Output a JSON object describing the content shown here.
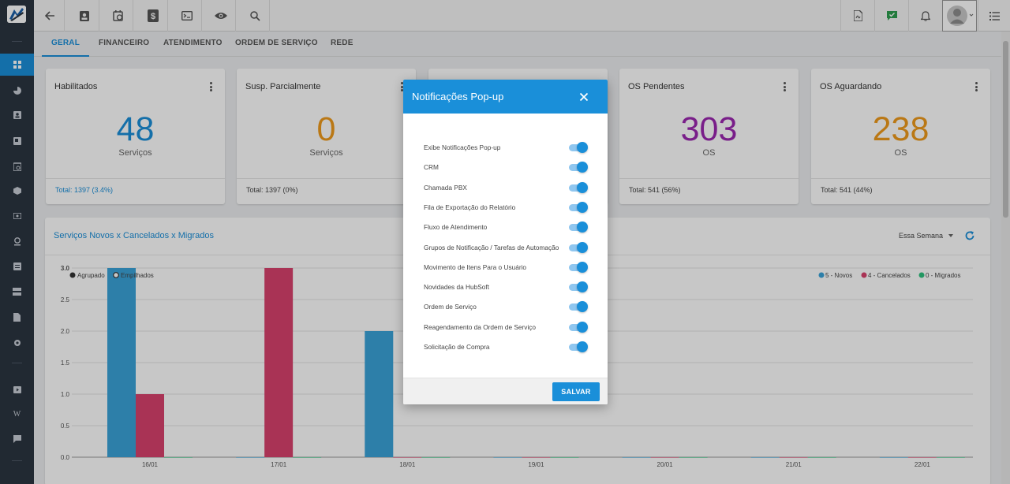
{
  "tabs": [
    "GERAL",
    "FINANCEIRO",
    "ATENDIMENTO",
    "ORDEM DE SERVIÇO",
    "REDE"
  ],
  "cards": [
    {
      "title": "Habilitados",
      "value": "48",
      "unit": "Serviços",
      "footer": "Total: 1397 (3.4%)",
      "color": "#1a8fd9"
    },
    {
      "title": "Susp. Parcialmente",
      "value": "0",
      "unit": "Serviços",
      "footer": "Total:  1397 (0%)",
      "color": "#ef9a1c"
    },
    {
      "title": "OS Pendentes",
      "value": "303",
      "unit": "OS",
      "footer": "Total:  541 (56%)",
      "color": "#9b27b0"
    },
    {
      "title": "OS Aguardando",
      "value": "238",
      "unit": "OS",
      "footer": "Total:  541 (44%)",
      "color": "#ef9a1c"
    }
  ],
  "chart_panel": {
    "title": "Serviços Novos x Cancelados x Migrados",
    "period": "Essa Semana"
  },
  "chart_data": {
    "type": "bar",
    "categories": [
      "16/01",
      "17/01",
      "18/01",
      "19/01",
      "20/01",
      "21/01",
      "22/01"
    ],
    "series": [
      {
        "name": "5 - Novos",
        "values": [
          3,
          0,
          2,
          0,
          0,
          0,
          0
        ],
        "color": "#3aa3d9"
      },
      {
        "name": "4 - Cancelados",
        "values": [
          1,
          3,
          0,
          0,
          0,
          0,
          0
        ],
        "color": "#d9426e"
      },
      {
        "name": "0 - Migrados",
        "values": [
          0,
          0,
          0,
          0,
          0,
          0,
          0
        ],
        "color": "#2ec27e"
      }
    ],
    "yticks": [
      "0.0",
      "0.5",
      "1.0",
      "1.5",
      "2.0",
      "2.5",
      "3.0"
    ],
    "ylim": [
      0,
      3
    ],
    "modes": [
      "Agrupado",
      "Empilhados"
    ],
    "selected_mode": "Agrupado",
    "title": "",
    "xlabel": "",
    "ylabel": ""
  },
  "modal": {
    "title": "Notificações Pop-up",
    "options": [
      {
        "label": "Exibe Notificações Pop-up",
        "enabled": true
      },
      {
        "label": "CRM",
        "enabled": true
      },
      {
        "label": "Chamada PBX",
        "enabled": true
      },
      {
        "label": "Fila de Exportação do Relatório",
        "enabled": true
      },
      {
        "label": "Fluxo de Atendimento",
        "enabled": true
      },
      {
        "label": "Grupos de Notificação / Tarefas de Automação",
        "enabled": true
      },
      {
        "label": "Movimento de Itens Para o Usuário",
        "enabled": true
      },
      {
        "label": "Novidades da HubSoft",
        "enabled": true
      },
      {
        "label": "Ordem de Serviço",
        "enabled": true
      },
      {
        "label": "Reagendamento da Ordem de Serviço",
        "enabled": true
      },
      {
        "label": "Solicitação de Compra",
        "enabled": true
      }
    ],
    "save_label": "SALVAR"
  },
  "icons": {
    "sidebar": [
      "dashboard-icon",
      "chart-pie-icon",
      "contacts-icon",
      "monitor-icon",
      "calendar-clock-icon",
      "box-icon",
      "money-icon",
      "location-icon",
      "document-list-icon",
      "server-icon",
      "file-icon",
      "settings-icon",
      "video-icon",
      "wiki-icon",
      "chat-icon"
    ],
    "toolbar": [
      "back-arrow-icon",
      "contact-card-icon",
      "calendar-clock-icon",
      "dollar-icon",
      "terminal-icon",
      "eye-icon",
      "search-icon"
    ],
    "toolbar_right": [
      "pdf-icon",
      "message-check-icon",
      "bell-icon",
      "avatar-icon",
      "list-icon"
    ]
  }
}
